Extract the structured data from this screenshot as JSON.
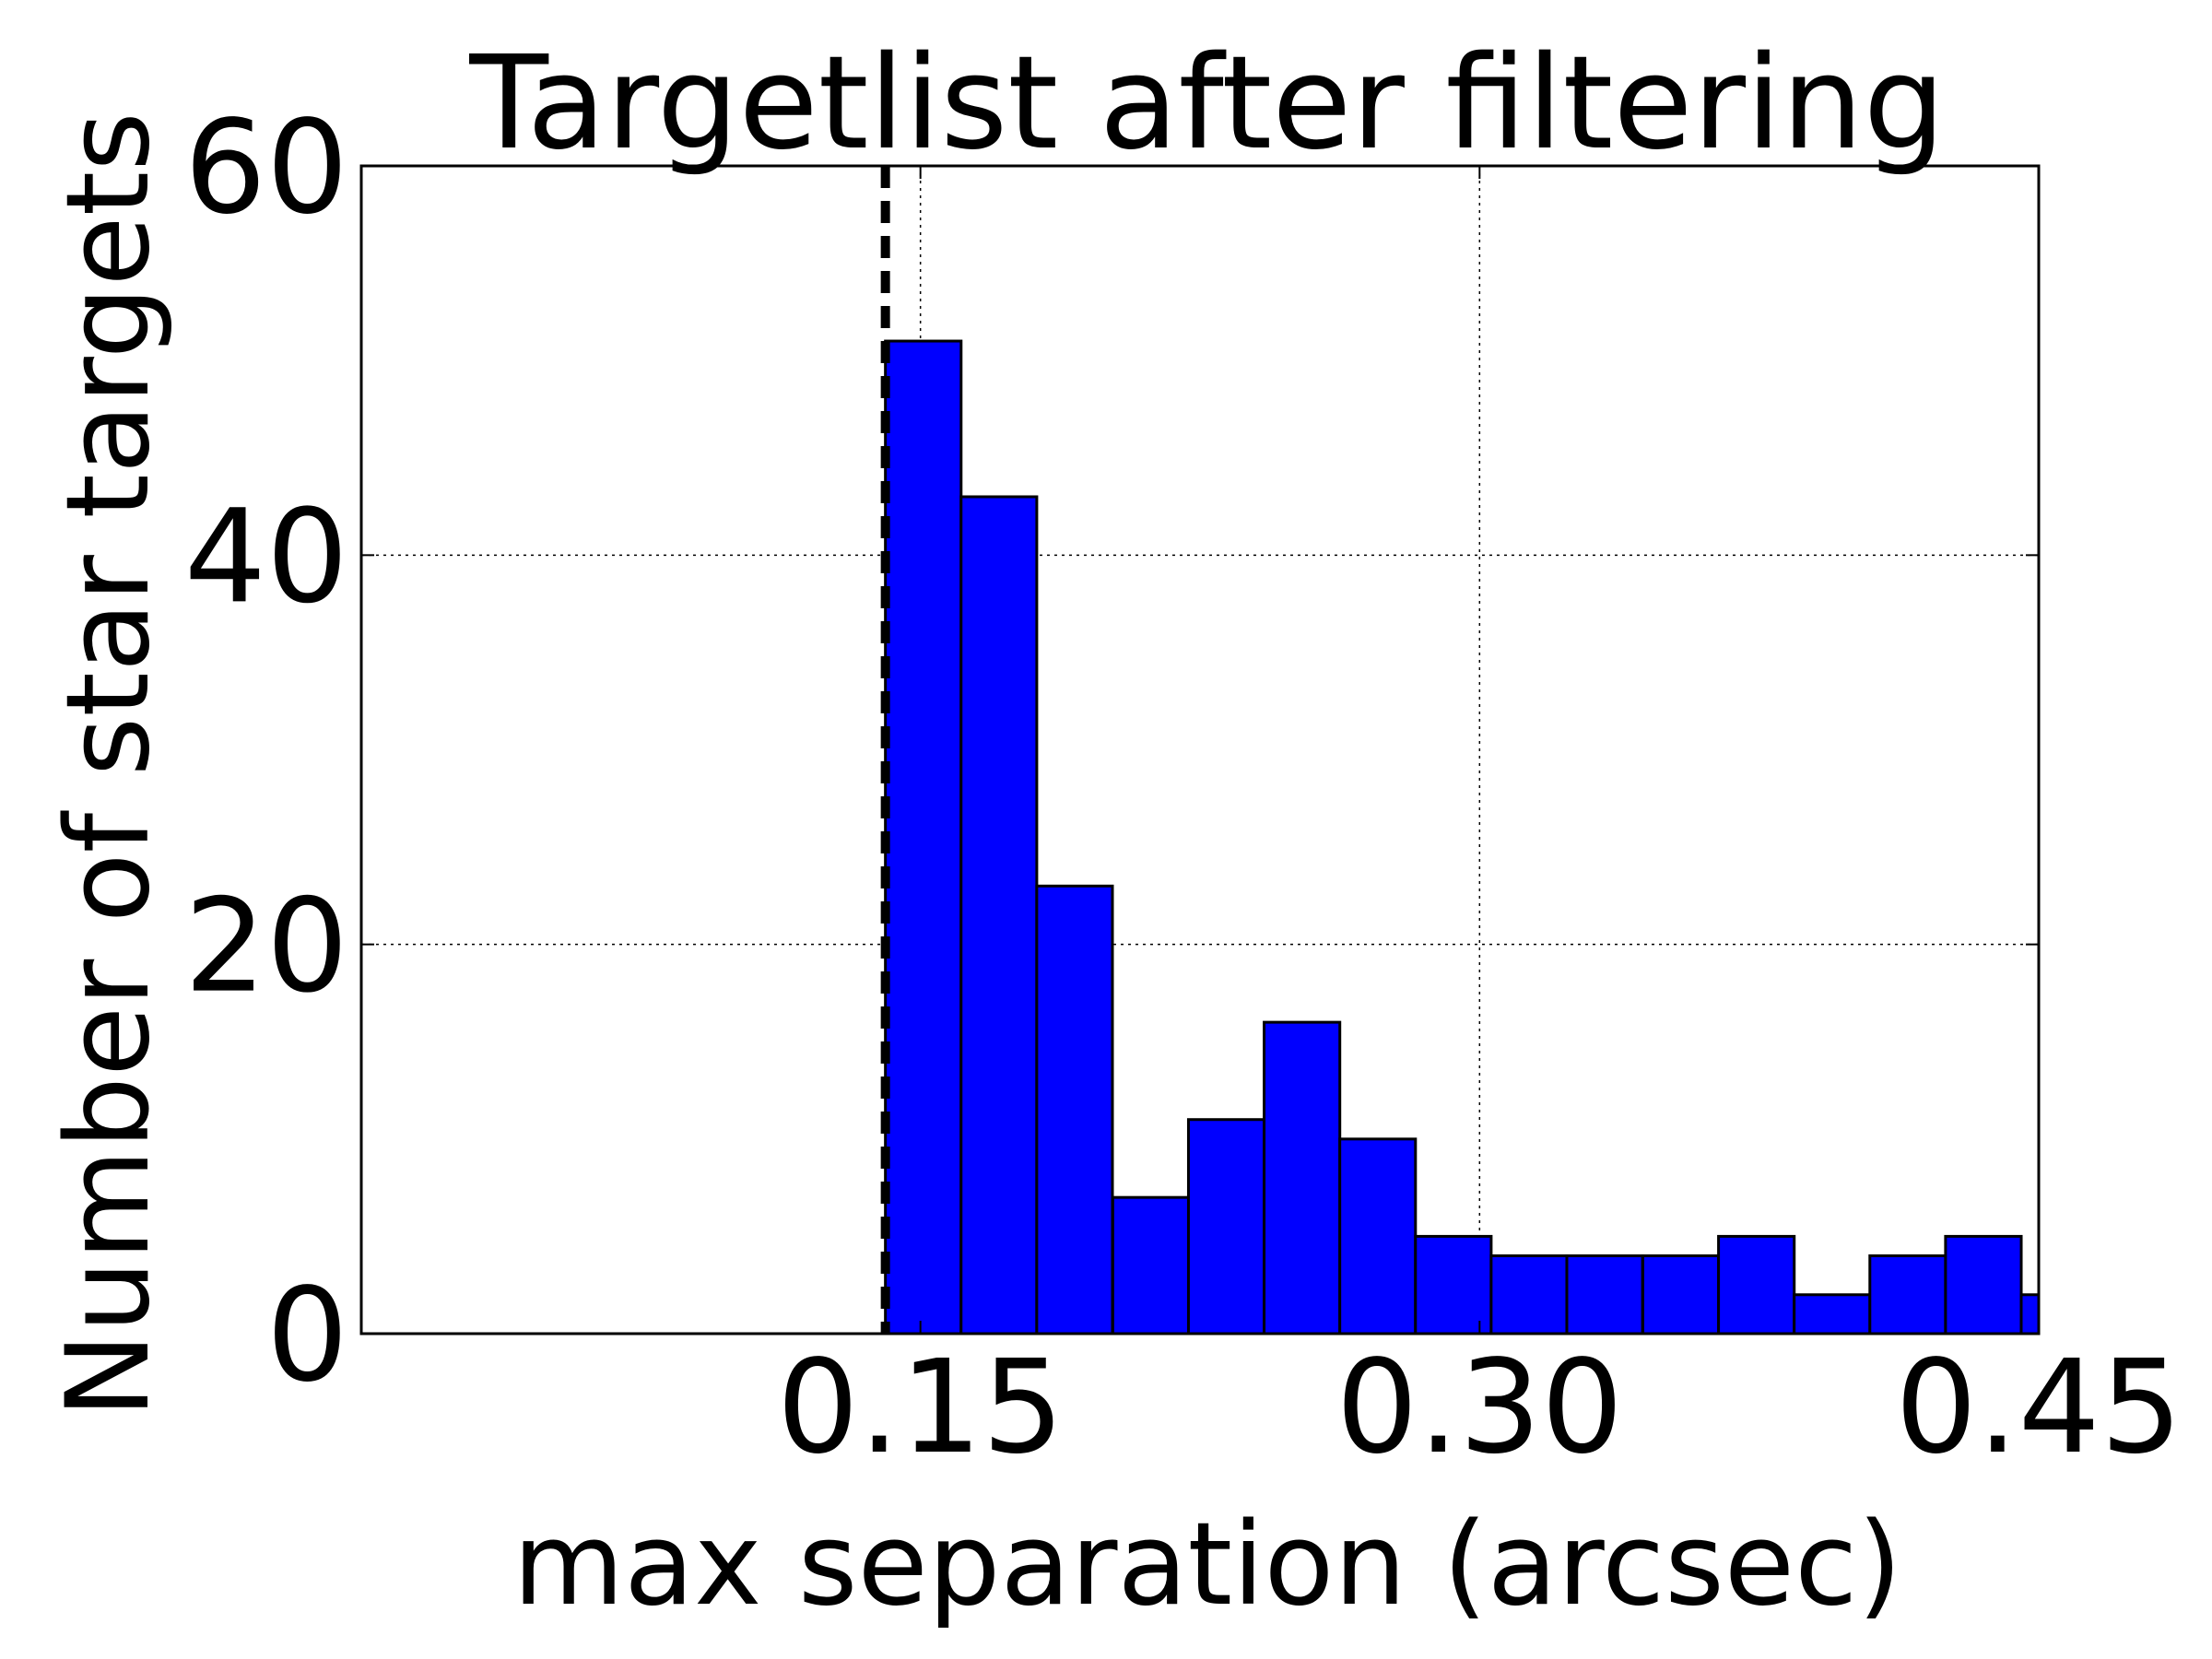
{
  "chart_data": {
    "type": "bar",
    "title": "Targetlist after filtering",
    "xlabel": "max separation (arcsec)",
    "ylabel": "Number of star targets",
    "xlim": [
      0.0,
      0.45
    ],
    "ylim": [
      0,
      60
    ],
    "xticks": [
      0.15,
      0.3,
      0.45
    ],
    "xtick_labels": [
      "0.15",
      "0.30",
      "0.45"
    ],
    "yticks": [
      0,
      20,
      40,
      60
    ],
    "ytick_labels": [
      "0",
      "20",
      "40",
      "60"
    ],
    "grid": true,
    "bar_color": "#0000ff",
    "bin_width": 0.02031,
    "bins": [
      {
        "x0": 0.1406,
        "count": 51
      },
      {
        "x0": 0.1609,
        "count": 43
      },
      {
        "x0": 0.1812,
        "count": 23
      },
      {
        "x0": 0.2016,
        "count": 7
      },
      {
        "x0": 0.2219,
        "count": 11
      },
      {
        "x0": 0.2422,
        "count": 16
      },
      {
        "x0": 0.2625,
        "count": 10
      },
      {
        "x0": 0.2828,
        "count": 5
      },
      {
        "x0": 0.3031,
        "count": 4
      },
      {
        "x0": 0.3234,
        "count": 4
      },
      {
        "x0": 0.3438,
        "count": 4
      },
      {
        "x0": 0.3641,
        "count": 5
      },
      {
        "x0": 0.3844,
        "count": 2
      },
      {
        "x0": 0.4047,
        "count": 4
      },
      {
        "x0": 0.425,
        "count": 5
      },
      {
        "x0": 0.4453,
        "count": 2
      }
    ],
    "threshold_line": {
      "x": 0.1406,
      "style": "dashed",
      "color": "#000000"
    }
  }
}
